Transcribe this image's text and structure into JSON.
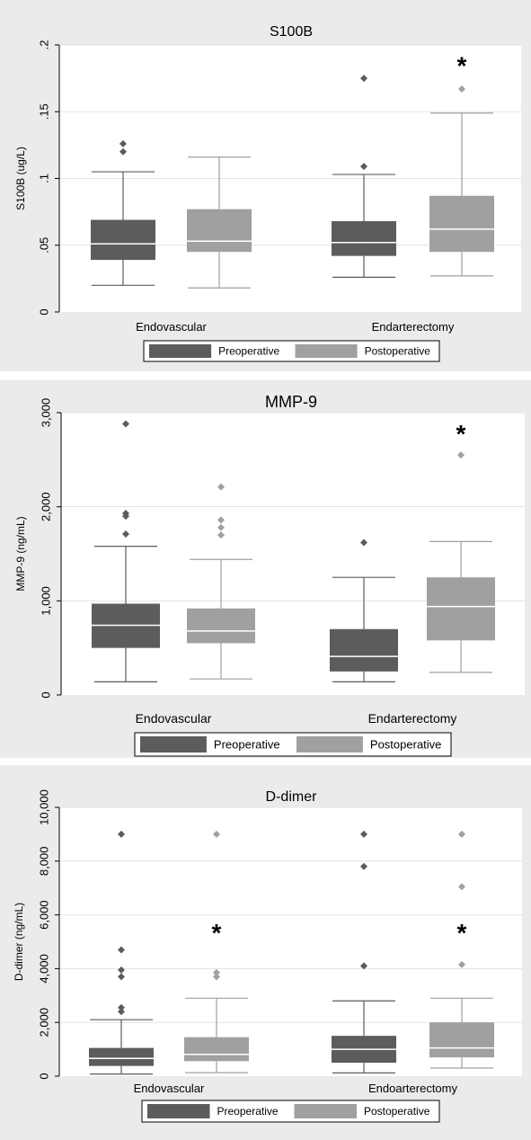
{
  "colors": {
    "background": "#ebebeb",
    "plot_area": "#ffffff",
    "gridline": "#e3e3e3",
    "preoperative": "#5c5c5c",
    "postoperative": "#a0a0a0",
    "median_line": "#ffffff",
    "text": "#000000"
  },
  "chart_data": [
    {
      "type": "box",
      "title": "S100B",
      "ylabel": "S100B (ug/L)",
      "xlabel": "",
      "ylim": [
        0,
        0.2
      ],
      "yticks": [
        0,
        0.05,
        0.1,
        0.15,
        0.2
      ],
      "ytick_labels": [
        "0",
        ".05",
        ".1",
        ".15",
        ".2"
      ],
      "categories": [
        "Endovascular",
        "Endarterectomy"
      ],
      "series": [
        {
          "name": "Preoperative",
          "boxes": [
            {
              "whisker_low": 0.02,
              "q1": 0.039,
              "median": 0.051,
              "q3": 0.069,
              "whisker_high": 0.105,
              "outliers": [
                0.12,
                0.126
              ]
            },
            {
              "whisker_low": 0.026,
              "q1": 0.042,
              "median": 0.052,
              "q3": 0.068,
              "whisker_high": 0.103,
              "outliers": [
                0.109,
                0.175
              ]
            }
          ]
        },
        {
          "name": "Postoperative",
          "boxes": [
            {
              "whisker_low": 0.018,
              "q1": 0.045,
              "median": 0.053,
              "q3": 0.077,
              "whisker_high": 0.116,
              "outliers": []
            },
            {
              "whisker_low": 0.027,
              "q1": 0.045,
              "median": 0.062,
              "q3": 0.087,
              "whisker_high": 0.149,
              "outliers": [
                0.167
              ]
            }
          ]
        }
      ],
      "annotations": [
        {
          "text": "*",
          "category": 1,
          "series": 1,
          "y": 0.185
        }
      ],
      "legend": {
        "position": "bottom",
        "entries": [
          "Preoperative",
          "Postoperative"
        ]
      },
      "grid": true
    },
    {
      "type": "box",
      "title": "MMP-9",
      "ylabel": "MMP-9 (ng/mL)",
      "xlabel": "",
      "ylim": [
        0,
        3000
      ],
      "yticks": [
        0,
        1000,
        2000,
        3000
      ],
      "ytick_labels": [
        "0",
        "1,000",
        "2,000",
        "3,000"
      ],
      "categories": [
        "Endovascular",
        "Endarterectomy"
      ],
      "series": [
        {
          "name": "Preoperative",
          "boxes": [
            {
              "whisker_low": 140,
              "q1": 500,
              "median": 740,
              "q3": 970,
              "whisker_high": 1580,
              "outliers": [
                1710,
                1900,
                1930,
                2880
              ]
            },
            {
              "whisker_low": 140,
              "q1": 250,
              "median": 410,
              "q3": 700,
              "whisker_high": 1250,
              "outliers": [
                1620
              ]
            }
          ]
        },
        {
          "name": "Postoperative",
          "boxes": [
            {
              "whisker_low": 170,
              "q1": 550,
              "median": 680,
              "q3": 920,
              "whisker_high": 1440,
              "outliers": [
                1700,
                1780,
                1860,
                2210
              ]
            },
            {
              "whisker_low": 240,
              "q1": 580,
              "median": 940,
              "q3": 1250,
              "whisker_high": 1630,
              "outliers": [
                2550
              ]
            }
          ]
        }
      ],
      "annotations": [
        {
          "text": "*",
          "category": 1,
          "series": 1,
          "y": 2780
        }
      ],
      "legend": {
        "position": "bottom",
        "entries": [
          "Preoperative",
          "Postoperative"
        ]
      },
      "grid": true
    },
    {
      "type": "box",
      "title": "D-dimer",
      "ylabel": "D-dimer (ng/mL)",
      "xlabel": "",
      "ylim": [
        0,
        10000
      ],
      "yticks": [
        0,
        2000,
        4000,
        6000,
        8000,
        10000
      ],
      "ytick_labels": [
        "0",
        "2,000",
        "4,000",
        "6,000",
        "8,000",
        "10,000"
      ],
      "categories": [
        "Endovascular",
        "Endoarterectomy"
      ],
      "series": [
        {
          "name": "Preoperative",
          "boxes": [
            {
              "whisker_low": 80,
              "q1": 380,
              "median": 660,
              "q3": 1050,
              "whisker_high": 2100,
              "outliers": [
                2400,
                2550,
                3700,
                3950,
                4700,
                9000
              ]
            },
            {
              "whisker_low": 120,
              "q1": 500,
              "median": 1000,
              "q3": 1500,
              "whisker_high": 2800,
              "outliers": [
                4100,
                7800,
                9000
              ]
            }
          ]
        },
        {
          "name": "Postoperative",
          "boxes": [
            {
              "whisker_low": 130,
              "q1": 560,
              "median": 810,
              "q3": 1450,
              "whisker_high": 2900,
              "outliers": [
                3700,
                3850,
                9000
              ]
            },
            {
              "whisker_low": 300,
              "q1": 700,
              "median": 1050,
              "q3": 2000,
              "whisker_high": 2900,
              "outliers": [
                4150,
                7050,
                9000
              ]
            }
          ]
        }
      ],
      "annotations": [
        {
          "text": "*",
          "category": 0,
          "series": 1,
          "y": 5350
        },
        {
          "text": "*",
          "category": 1,
          "series": 1,
          "y": 5350
        }
      ],
      "legend": {
        "position": "bottom",
        "entries": [
          "Preoperative",
          "Postoperative"
        ]
      },
      "grid": true
    }
  ]
}
